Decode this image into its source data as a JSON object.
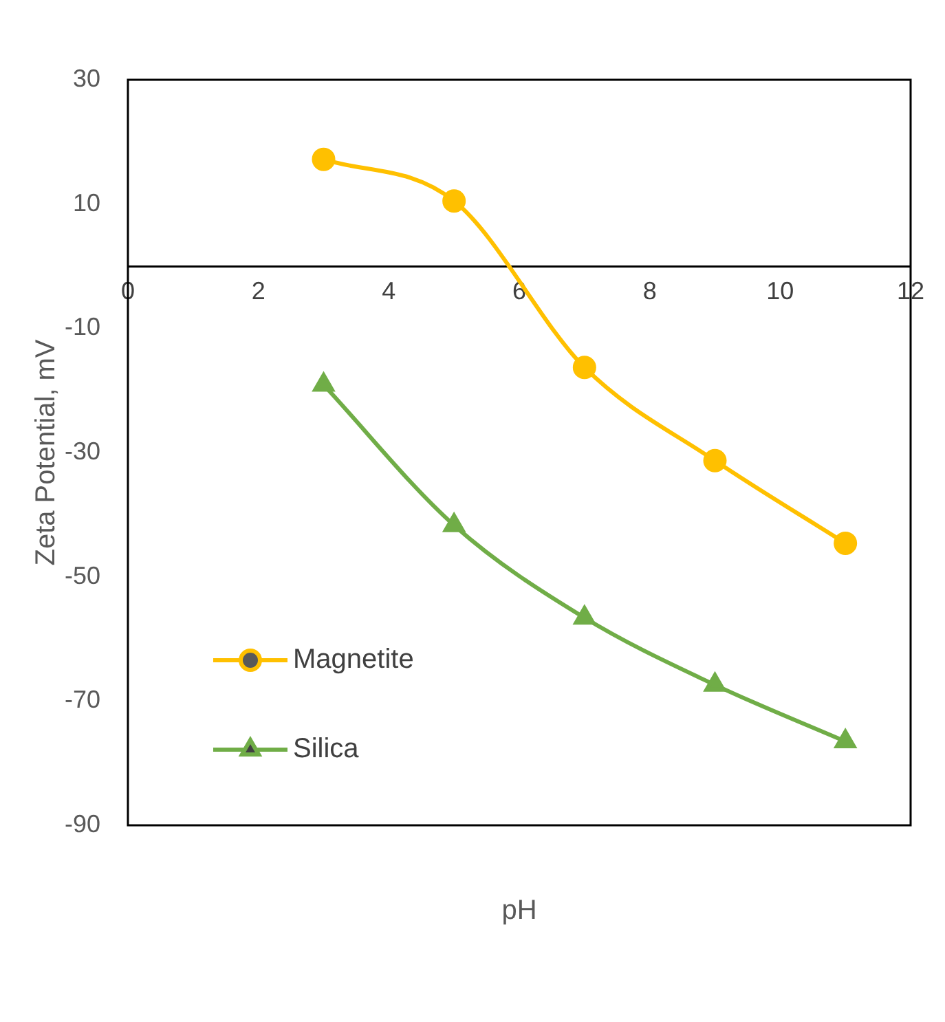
{
  "chart_data": {
    "type": "line",
    "xlabel": "pH",
    "ylabel": "Zeta Potential, mV",
    "x": [
      3,
      5,
      7,
      9,
      11
    ],
    "series": [
      {
        "name": "Magnetite",
        "color": "#ffc000",
        "marker": "circle",
        "values": [
          17.2,
          10.5,
          -16.3,
          -31.3,
          -44.6
        ]
      },
      {
        "name": "Silica",
        "color": "#70ad47",
        "marker": "triangle",
        "values": [
          -19.1,
          -41.7,
          -56.6,
          -67.4,
          -76.5
        ]
      }
    ],
    "xlim": [
      0,
      12
    ],
    "xticks": [
      0,
      2,
      4,
      6,
      8,
      10,
      12
    ],
    "ylim": [
      -90,
      30
    ],
    "yticks": [
      -90,
      -70,
      -50,
      -30,
      -10,
      10,
      30
    ],
    "grid": false,
    "legend": "left",
    "line_style": "solid"
  }
}
